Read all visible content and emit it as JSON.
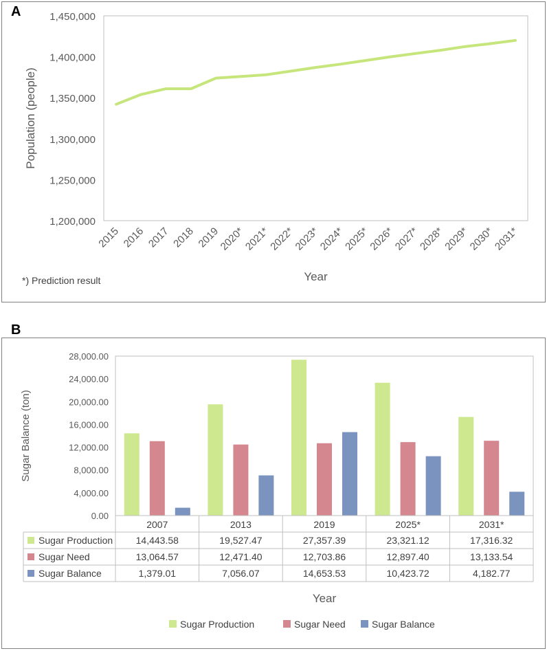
{
  "panel_a_label": "A",
  "panel_b_label": "B",
  "panel_a_note": "*) Prediction result",
  "colors": {
    "line": "#c6e57b",
    "production": "#cde88e",
    "need": "#d4878e",
    "balance": "#7b94bf",
    "grid": "#d9d9d9",
    "axis": "#bfbfbf"
  },
  "chart_data": [
    {
      "type": "line",
      "title": "",
      "xlabel": "Year",
      "ylabel": "Population (people)",
      "ylim": [
        1200000,
        1450000
      ],
      "yticks": [
        "1,200,000",
        "1,250,000",
        "1,300,000",
        "1,350,000",
        "1,400,000",
        "1,450,000"
      ],
      "ytick_values": [
        1200000,
        1250000,
        1300000,
        1350000,
        1400000,
        1450000
      ],
      "categories": [
        "2015",
        "2016",
        "2017",
        "2018",
        "2019",
        "2020*",
        "2021*",
        "2022*",
        "2023*",
        "2024*",
        "2025*",
        "2026*",
        "2027*",
        "2028*",
        "2029*",
        "2030*",
        "2031*"
      ],
      "values": [
        1342000,
        1354000,
        1361000,
        1361000,
        1374000,
        1376000,
        1378000,
        1382500,
        1387000,
        1391000,
        1395500,
        1400000,
        1404000,
        1408000,
        1412500,
        1416000,
        1420000
      ]
    },
    {
      "type": "bar",
      "title": "",
      "xlabel": "Year",
      "ylabel": "Sugar Balance (ton)",
      "ylim": [
        0,
        28000
      ],
      "yticks": [
        "0.00",
        "4,000.00",
        "8,000.00",
        "12,000.00",
        "16,000.00",
        "20,000.00",
        "24,000.00",
        "28,000.00"
      ],
      "ytick_values": [
        0,
        4000,
        8000,
        12000,
        16000,
        20000,
        24000,
        28000
      ],
      "categories": [
        "2007",
        "2013",
        "2019",
        "2025*",
        "2031*"
      ],
      "series": [
        {
          "name": "Sugar Production",
          "values": [
            14443.58,
            19527.47,
            27357.39,
            23321.12,
            17316.32
          ],
          "labels": [
            "14,443.58",
            "19,527.47",
            "27,357.39",
            "23,321.12",
            "17,316.32"
          ]
        },
        {
          "name": "Sugar Need",
          "values": [
            13064.57,
            12471.4,
            12703.86,
            12897.4,
            13133.54
          ],
          "labels": [
            "13,064.57",
            "12,471.40",
            "12,703.86",
            "12,897.40",
            "13,133.54"
          ]
        },
        {
          "name": "Sugar Balance",
          "values": [
            1379.01,
            7056.07,
            14653.53,
            10423.72,
            4182.77
          ],
          "labels": [
            "1,379.01",
            "7,056.07",
            "14,653.53",
            "10,423.72",
            "4,182.77"
          ]
        }
      ]
    }
  ]
}
